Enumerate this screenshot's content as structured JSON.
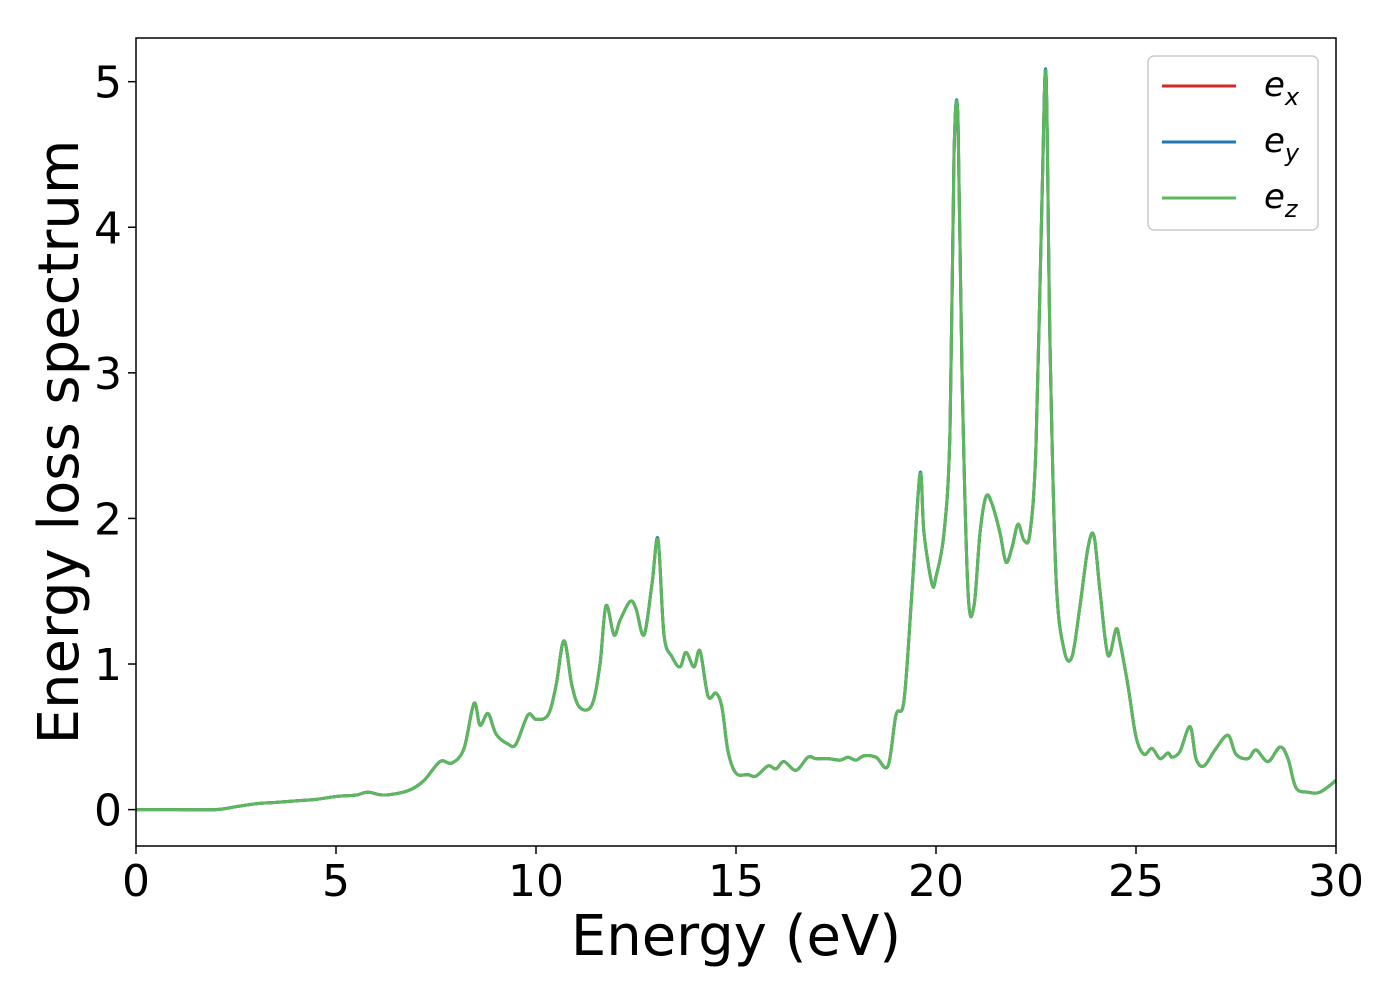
{
  "chart_data": {
    "type": "line",
    "xlabel": "Energy (eV)",
    "ylabel": "Energy loss spectrum",
    "xlim": [
      0,
      30
    ],
    "ylim": [
      -0.25,
      5.3
    ],
    "xticks": [
      0,
      5,
      10,
      15,
      20,
      25,
      30
    ],
    "xtick_labels": [
      "0",
      "5",
      "10",
      "15",
      "20",
      "25",
      "30"
    ],
    "yticks": [
      0,
      1,
      2,
      3,
      4,
      5
    ],
    "ytick_labels": [
      "0",
      "1",
      "2",
      "3",
      "4",
      "5"
    ],
    "grid": false,
    "legend_position": "top-right",
    "x": [
      0,
      1,
      2,
      2.5,
      3,
      3.5,
      4,
      4.5,
      5,
      5.5,
      5.8,
      6.2,
      6.8,
      7.2,
      7.6,
      7.9,
      8.2,
      8.45,
      8.6,
      8.8,
      9.0,
      9.3,
      9.5,
      9.8,
      10.0,
      10.3,
      10.5,
      10.7,
      10.9,
      11.1,
      11.4,
      11.6,
      11.75,
      11.95,
      12.1,
      12.35,
      12.5,
      12.7,
      12.9,
      13.05,
      13.2,
      13.4,
      13.6,
      13.75,
      13.95,
      14.1,
      14.3,
      14.5,
      14.65,
      14.8,
      15.0,
      15.3,
      15.5,
      15.8,
      16.0,
      16.2,
      16.5,
      16.8,
      17.0,
      17.3,
      17.6,
      17.8,
      18.0,
      18.2,
      18.5,
      18.8,
      19.0,
      19.2,
      19.4,
      19.6,
      19.7,
      19.9,
      20.0,
      20.2,
      20.35,
      20.45,
      20.55,
      20.65,
      20.8,
      20.95,
      21.1,
      21.25,
      21.4,
      21.6,
      21.75,
      21.9,
      22.05,
      22.2,
      22.35,
      22.5,
      22.65,
      22.75,
      22.85,
      23.0,
      23.2,
      23.4,
      23.6,
      23.8,
      23.95,
      24.1,
      24.3,
      24.5,
      24.6,
      24.8,
      25.0,
      25.2,
      25.4,
      25.6,
      25.8,
      25.9,
      26.1,
      26.35,
      26.5,
      26.7,
      27.0,
      27.3,
      27.5,
      27.8,
      28.0,
      28.3,
      28.6,
      28.8,
      29.0,
      29.3,
      29.6,
      30.0
    ],
    "series": [
      {
        "name": "x",
        "color": "#d62728",
        "values": [
          0,
          0,
          0,
          0.02,
          0.04,
          0.05,
          0.06,
          0.07,
          0.09,
          0.1,
          0.12,
          0.1,
          0.13,
          0.2,
          0.33,
          0.32,
          0.42,
          0.73,
          0.58,
          0.66,
          0.52,
          0.45,
          0.45,
          0.65,
          0.62,
          0.65,
          0.85,
          1.16,
          0.85,
          0.7,
          0.72,
          1.0,
          1.4,
          1.2,
          1.3,
          1.43,
          1.38,
          1.2,
          1.55,
          1.85,
          1.2,
          1.05,
          0.98,
          1.08,
          0.98,
          1.09,
          0.78,
          0.8,
          0.7,
          0.4,
          0.25,
          0.24,
          0.23,
          0.3,
          0.28,
          0.33,
          0.27,
          0.36,
          0.35,
          0.35,
          0.34,
          0.36,
          0.34,
          0.37,
          0.36,
          0.3,
          0.65,
          0.75,
          1.5,
          2.3,
          1.9,
          1.55,
          1.6,
          1.9,
          2.6,
          4.5,
          4.74,
          3.0,
          1.5,
          1.4,
          1.9,
          2.15,
          2.1,
          1.9,
          1.7,
          1.8,
          1.96,
          1.85,
          1.9,
          2.5,
          4.2,
          5.05,
          3.2,
          1.6,
          1.1,
          1.05,
          1.4,
          1.8,
          1.88,
          1.5,
          1.06,
          1.24,
          1.15,
          0.85,
          0.5,
          0.38,
          0.42,
          0.35,
          0.39,
          0.36,
          0.4,
          0.57,
          0.35,
          0.3,
          0.42,
          0.51,
          0.38,
          0.35,
          0.41,
          0.33,
          0.43,
          0.35,
          0.15,
          0.12,
          0.12,
          0.2
        ]
      },
      {
        "name": "y",
        "color": "#1f77b4",
        "values": [
          0,
          0,
          0,
          0.02,
          0.04,
          0.05,
          0.06,
          0.07,
          0.09,
          0.1,
          0.12,
          0.1,
          0.13,
          0.2,
          0.33,
          0.32,
          0.42,
          0.73,
          0.58,
          0.66,
          0.52,
          0.45,
          0.45,
          0.65,
          0.62,
          0.65,
          0.85,
          1.16,
          0.85,
          0.7,
          0.72,
          1.0,
          1.4,
          1.2,
          1.3,
          1.43,
          1.38,
          1.2,
          1.55,
          1.86,
          1.2,
          1.05,
          0.98,
          1.08,
          0.98,
          1.09,
          0.78,
          0.8,
          0.7,
          0.4,
          0.25,
          0.24,
          0.23,
          0.3,
          0.28,
          0.33,
          0.27,
          0.36,
          0.35,
          0.35,
          0.34,
          0.36,
          0.34,
          0.37,
          0.36,
          0.3,
          0.65,
          0.75,
          1.5,
          2.31,
          1.9,
          1.55,
          1.6,
          1.9,
          2.6,
          4.5,
          4.75,
          3.0,
          1.5,
          1.4,
          1.9,
          2.15,
          2.1,
          1.9,
          1.7,
          1.8,
          1.96,
          1.85,
          1.9,
          2.5,
          4.2,
          5.06,
          3.2,
          1.6,
          1.1,
          1.05,
          1.4,
          1.8,
          1.88,
          1.5,
          1.06,
          1.24,
          1.15,
          0.85,
          0.5,
          0.38,
          0.42,
          0.35,
          0.39,
          0.36,
          0.4,
          0.57,
          0.35,
          0.3,
          0.42,
          0.51,
          0.38,
          0.35,
          0.41,
          0.33,
          0.43,
          0.35,
          0.15,
          0.12,
          0.12,
          0.2
        ]
      },
      {
        "name": "z",
        "color": "#5cb85c",
        "values": [
          0,
          0,
          0,
          0.02,
          0.04,
          0.05,
          0.06,
          0.07,
          0.09,
          0.1,
          0.12,
          0.1,
          0.13,
          0.2,
          0.33,
          0.32,
          0.42,
          0.73,
          0.58,
          0.66,
          0.52,
          0.45,
          0.45,
          0.65,
          0.62,
          0.65,
          0.85,
          1.16,
          0.85,
          0.7,
          0.72,
          1.0,
          1.4,
          1.2,
          1.3,
          1.43,
          1.38,
          1.2,
          1.55,
          1.85,
          1.2,
          1.05,
          0.98,
          1.08,
          0.98,
          1.09,
          0.78,
          0.8,
          0.7,
          0.4,
          0.25,
          0.24,
          0.23,
          0.3,
          0.28,
          0.33,
          0.27,
          0.36,
          0.35,
          0.35,
          0.34,
          0.36,
          0.34,
          0.37,
          0.36,
          0.3,
          0.65,
          0.75,
          1.5,
          2.3,
          1.9,
          1.55,
          1.6,
          1.9,
          2.6,
          4.5,
          4.74,
          3.0,
          1.5,
          1.4,
          1.9,
          2.15,
          2.1,
          1.9,
          1.7,
          1.8,
          1.96,
          1.85,
          1.9,
          2.5,
          4.2,
          5.05,
          3.2,
          1.6,
          1.1,
          1.05,
          1.4,
          1.8,
          1.88,
          1.5,
          1.06,
          1.24,
          1.15,
          0.85,
          0.5,
          0.38,
          0.42,
          0.35,
          0.39,
          0.36,
          0.4,
          0.57,
          0.35,
          0.3,
          0.42,
          0.51,
          0.38,
          0.35,
          0.41,
          0.33,
          0.43,
          0.35,
          0.15,
          0.12,
          0.12,
          0.2
        ]
      }
    ],
    "legend": {
      "entries": [
        {
          "base": "e",
          "sub": "x",
          "color": "#d62728"
        },
        {
          "base": "e",
          "sub": "y",
          "color": "#1f77b4"
        },
        {
          "base": "e",
          "sub": "z",
          "color": "#5cb85c"
        }
      ]
    }
  }
}
